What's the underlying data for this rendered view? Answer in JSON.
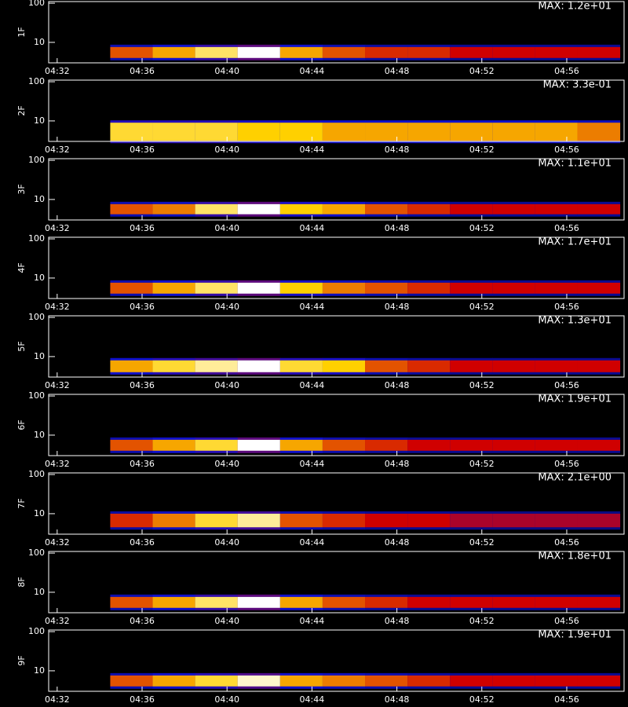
{
  "chart_data": [
    {
      "type": "heatmap",
      "ylabel": "1F",
      "annotation": "MAX: 1.2e+01",
      "x": [
        275.5,
        277.5,
        279.5,
        281.5,
        283.5,
        285.5,
        287.5,
        289.5,
        291.5,
        293.5,
        295.5,
        297.5
      ],
      "values": [
        0.6,
        0.7,
        0.85,
        1.0,
        0.7,
        0.6,
        0.55,
        0.55,
        0.5,
        0.5,
        0.5,
        0.5
      ],
      "band": [
        4,
        7.6
      ],
      "xlim": [
        271.6,
        298.7
      ],
      "xticks": [
        {
          "value": 272,
          "label": "04:32"
        },
        {
          "value": 276,
          "label": "04:36"
        },
        {
          "value": 280,
          "label": "04:40"
        },
        {
          "value": 284,
          "label": "04:44"
        },
        {
          "value": 288,
          "label": "04:48"
        },
        {
          "value": 292,
          "label": "04:52"
        },
        {
          "value": 296,
          "label": "04:56"
        }
      ],
      "ylim": [
        3,
        110
      ],
      "yticks": [
        10,
        100
      ],
      "log_y": true,
      "colormap": [
        "#000000",
        "#1010d0",
        "#d00000",
        "#ffd000",
        "#ffffff"
      ]
    },
    {
      "type": "heatmap",
      "ylabel": "2F",
      "annotation": "MAX: 3.3e-01",
      "x": [
        275.5,
        277.5,
        279.5,
        281.5,
        283.5,
        285.5,
        287.5,
        289.5,
        291.5,
        293.5,
        295.5,
        297.5
      ],
      "values": [
        0.8,
        0.8,
        0.8,
        0.75,
        0.75,
        0.7,
        0.7,
        0.7,
        0.7,
        0.7,
        0.7,
        0.65
      ],
      "band": [
        3.1,
        9
      ],
      "xlim": [
        271.6,
        298.7
      ],
      "xticks": [
        {
          "value": 272,
          "label": "04:32"
        },
        {
          "value": 276,
          "label": "04:36"
        },
        {
          "value": 280,
          "label": "04:40"
        },
        {
          "value": 284,
          "label": "04:44"
        },
        {
          "value": 288,
          "label": "04:48"
        },
        {
          "value": 292,
          "label": "04:52"
        },
        {
          "value": 296,
          "label": "04:56"
        }
      ],
      "ylim": [
        3,
        110
      ],
      "yticks": [
        10,
        100
      ],
      "log_y": true,
      "colormap": [
        "#000000",
        "#1010d0",
        "#d00000",
        "#ffd000",
        "#ffffff"
      ]
    },
    {
      "type": "heatmap",
      "ylabel": "3F",
      "annotation": "MAX: 1.1e+01",
      "x": [
        275.5,
        277.5,
        279.5,
        281.5,
        283.5,
        285.5,
        287.5,
        289.5,
        291.5,
        293.5,
        295.5,
        297.5
      ],
      "values": [
        0.6,
        0.65,
        0.85,
        1.0,
        0.75,
        0.7,
        0.6,
        0.55,
        0.5,
        0.5,
        0.5,
        0.5
      ],
      "band": [
        4.2,
        7.6
      ],
      "xlim": [
        271.6,
        298.7
      ],
      "xticks": [
        {
          "value": 272,
          "label": "04:32"
        },
        {
          "value": 276,
          "label": "04:36"
        },
        {
          "value": 280,
          "label": "04:40"
        },
        {
          "value": 284,
          "label": "04:44"
        },
        {
          "value": 288,
          "label": "04:48"
        },
        {
          "value": 292,
          "label": "04:52"
        },
        {
          "value": 296,
          "label": "04:56"
        }
      ],
      "ylim": [
        3,
        110
      ],
      "yticks": [
        10,
        100
      ],
      "log_y": true,
      "colormap": [
        "#000000",
        "#1010d0",
        "#d00000",
        "#ffd000",
        "#ffffff"
      ]
    },
    {
      "type": "heatmap",
      "ylabel": "4F",
      "annotation": "MAX: 1.7e+01",
      "x": [
        275.5,
        277.5,
        279.5,
        281.5,
        283.5,
        285.5,
        287.5,
        289.5,
        291.5,
        293.5,
        295.5,
        297.5
      ],
      "values": [
        0.6,
        0.7,
        0.85,
        1.0,
        0.75,
        0.65,
        0.6,
        0.55,
        0.5,
        0.5,
        0.5,
        0.5
      ],
      "band": [
        4,
        7.6
      ],
      "xlim": [
        271.6,
        298.7
      ],
      "xticks": [
        {
          "value": 272,
          "label": "04:32"
        },
        {
          "value": 276,
          "label": "04:36"
        },
        {
          "value": 280,
          "label": "04:40"
        },
        {
          "value": 284,
          "label": "04:44"
        },
        {
          "value": 288,
          "label": "04:48"
        },
        {
          "value": 292,
          "label": "04:52"
        },
        {
          "value": 296,
          "label": "04:56"
        }
      ],
      "ylim": [
        3,
        110
      ],
      "yticks": [
        10,
        100
      ],
      "log_y": true,
      "colormap": [
        "#000000",
        "#1010d0",
        "#d00000",
        "#ffd000",
        "#ffffff"
      ]
    },
    {
      "type": "heatmap",
      "ylabel": "5F",
      "annotation": "MAX: 1.3e+01",
      "x": [
        275.5,
        277.5,
        279.5,
        281.5,
        283.5,
        285.5,
        287.5,
        289.5,
        291.5,
        293.5,
        295.5,
        297.5
      ],
      "values": [
        0.7,
        0.8,
        0.9,
        1.0,
        0.8,
        0.75,
        0.6,
        0.55,
        0.5,
        0.5,
        0.5,
        0.5
      ],
      "band": [
        4,
        8
      ],
      "xlim": [
        271.6,
        298.7
      ],
      "xticks": [
        {
          "value": 272,
          "label": "04:32"
        },
        {
          "value": 276,
          "label": "04:36"
        },
        {
          "value": 280,
          "label": "04:40"
        },
        {
          "value": 284,
          "label": "04:44"
        },
        {
          "value": 288,
          "label": "04:48"
        },
        {
          "value": 292,
          "label": "04:52"
        },
        {
          "value": 296,
          "label": "04:56"
        }
      ],
      "ylim": [
        3,
        110
      ],
      "yticks": [
        10,
        100
      ],
      "log_y": true,
      "colormap": [
        "#000000",
        "#1010d0",
        "#d00000",
        "#ffd000",
        "#ffffff"
      ]
    },
    {
      "type": "heatmap",
      "ylabel": "6F",
      "annotation": "MAX: 1.9e+01",
      "x": [
        275.5,
        277.5,
        279.5,
        281.5,
        283.5,
        285.5,
        287.5,
        289.5,
        291.5,
        293.5,
        295.5,
        297.5
      ],
      "values": [
        0.6,
        0.7,
        0.8,
        1.0,
        0.7,
        0.6,
        0.55,
        0.5,
        0.5,
        0.5,
        0.5,
        0.5
      ],
      "band": [
        4,
        7.6
      ],
      "xlim": [
        271.6,
        298.7
      ],
      "xticks": [
        {
          "value": 272,
          "label": "04:32"
        },
        {
          "value": 276,
          "label": "04:36"
        },
        {
          "value": 280,
          "label": "04:40"
        },
        {
          "value": 284,
          "label": "04:44"
        },
        {
          "value": 288,
          "label": "04:48"
        },
        {
          "value": 292,
          "label": "04:52"
        },
        {
          "value": 296,
          "label": "04:56"
        }
      ],
      "ylim": [
        3,
        110
      ],
      "yticks": [
        10,
        100
      ],
      "log_y": true,
      "colormap": [
        "#000000",
        "#1010d0",
        "#d00000",
        "#ffd000",
        "#ffffff"
      ]
    },
    {
      "type": "heatmap",
      "ylabel": "7F",
      "annotation": "MAX: 2.1e+00",
      "x": [
        275.5,
        277.5,
        279.5,
        281.5,
        283.5,
        285.5,
        287.5,
        289.5,
        291.5,
        293.5,
        295.5,
        297.5
      ],
      "values": [
        0.55,
        0.65,
        0.8,
        0.9,
        0.6,
        0.55,
        0.5,
        0.5,
        0.45,
        0.45,
        0.45,
        0.45
      ],
      "band": [
        4.5,
        10
      ],
      "xlim": [
        271.6,
        298.7
      ],
      "xticks": [
        {
          "value": 272,
          "label": "04:32"
        },
        {
          "value": 276,
          "label": "04:36"
        },
        {
          "value": 280,
          "label": "04:40"
        },
        {
          "value": 284,
          "label": "04:44"
        },
        {
          "value": 288,
          "label": "04:48"
        },
        {
          "value": 292,
          "label": "04:52"
        },
        {
          "value": 296,
          "label": "04:56"
        }
      ],
      "ylim": [
        3,
        110
      ],
      "yticks": [
        10,
        100
      ],
      "log_y": true,
      "colormap": [
        "#000000",
        "#1010d0",
        "#d00000",
        "#ffd000",
        "#ffffff"
      ]
    },
    {
      "type": "heatmap",
      "ylabel": "8F",
      "annotation": "MAX: 1.8e+01",
      "x": [
        275.5,
        277.5,
        279.5,
        281.5,
        283.5,
        285.5,
        287.5,
        289.5,
        291.5,
        293.5,
        295.5,
        297.5
      ],
      "values": [
        0.6,
        0.7,
        0.85,
        1.0,
        0.7,
        0.6,
        0.55,
        0.5,
        0.5,
        0.5,
        0.5,
        0.5
      ],
      "band": [
        4,
        7.6
      ],
      "xlim": [
        271.6,
        298.7
      ],
      "xticks": [
        {
          "value": 272,
          "label": "04:32"
        },
        {
          "value": 276,
          "label": "04:36"
        },
        {
          "value": 280,
          "label": "04:40"
        },
        {
          "value": 284,
          "label": "04:44"
        },
        {
          "value": 288,
          "label": "04:48"
        },
        {
          "value": 292,
          "label": "04:52"
        },
        {
          "value": 296,
          "label": "04:56"
        }
      ],
      "ylim": [
        3,
        110
      ],
      "yticks": [
        10,
        100
      ],
      "log_y": true,
      "colormap": [
        "#000000",
        "#1010d0",
        "#d00000",
        "#ffd000",
        "#ffffff"
      ]
    },
    {
      "type": "heatmap",
      "ylabel": "9F",
      "annotation": "MAX: 1.9e+01",
      "x": [
        275.5,
        277.5,
        279.5,
        281.5,
        283.5,
        285.5,
        287.5,
        289.5,
        291.5,
        293.5,
        295.5,
        297.5
      ],
      "values": [
        0.6,
        0.7,
        0.8,
        0.95,
        0.7,
        0.65,
        0.6,
        0.55,
        0.5,
        0.5,
        0.5,
        0.5
      ],
      "band": [
        4,
        7.6
      ],
      "xlim": [
        271.6,
        298.7
      ],
      "xticks": [
        {
          "value": 272,
          "label": "04:32"
        },
        {
          "value": 276,
          "label": "04:36"
        },
        {
          "value": 280,
          "label": "04:40"
        },
        {
          "value": 284,
          "label": "04:44"
        },
        {
          "value": 288,
          "label": "04:48"
        },
        {
          "value": 292,
          "label": "04:52"
        },
        {
          "value": 296,
          "label": "04:56"
        }
      ],
      "ylim": [
        3,
        110
      ],
      "yticks": [
        10,
        100
      ],
      "log_y": true,
      "colormap": [
        "#000000",
        "#1010d0",
        "#d00000",
        "#ffd000",
        "#ffffff"
      ]
    }
  ]
}
